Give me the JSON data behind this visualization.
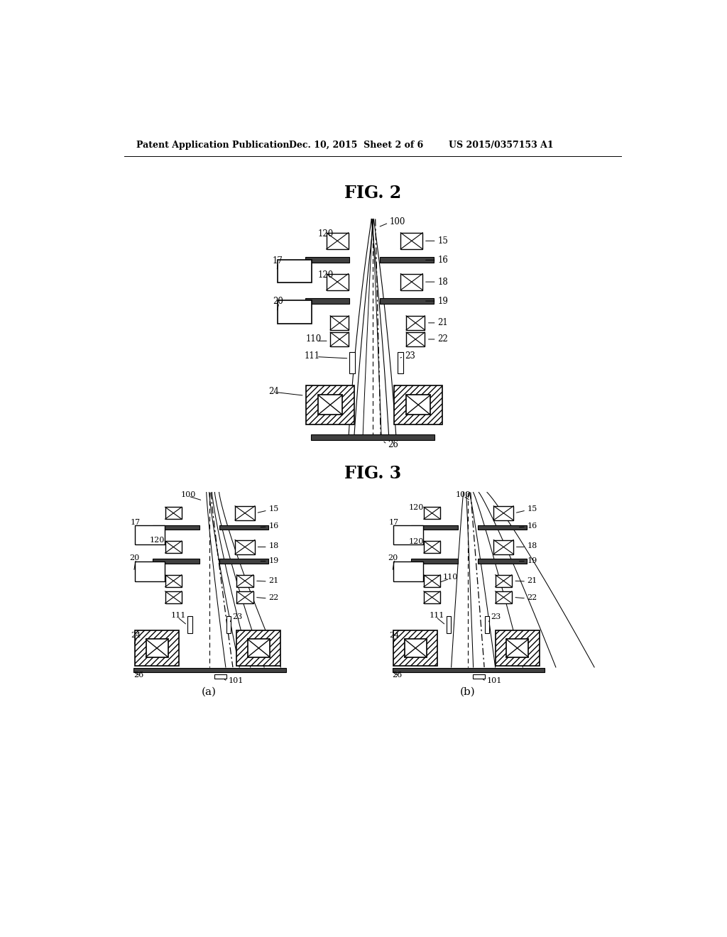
{
  "background_color": "#ffffff",
  "header_text": "Patent Application Publication",
  "header_date": "Dec. 10, 2015  Sheet 2 of 6",
  "header_patent": "US 2015/0357153 A1",
  "fig2_title": "FIG. 2",
  "fig3_title": "FIG. 3",
  "fig3a_label": "(a)",
  "fig3b_label": "(b)"
}
